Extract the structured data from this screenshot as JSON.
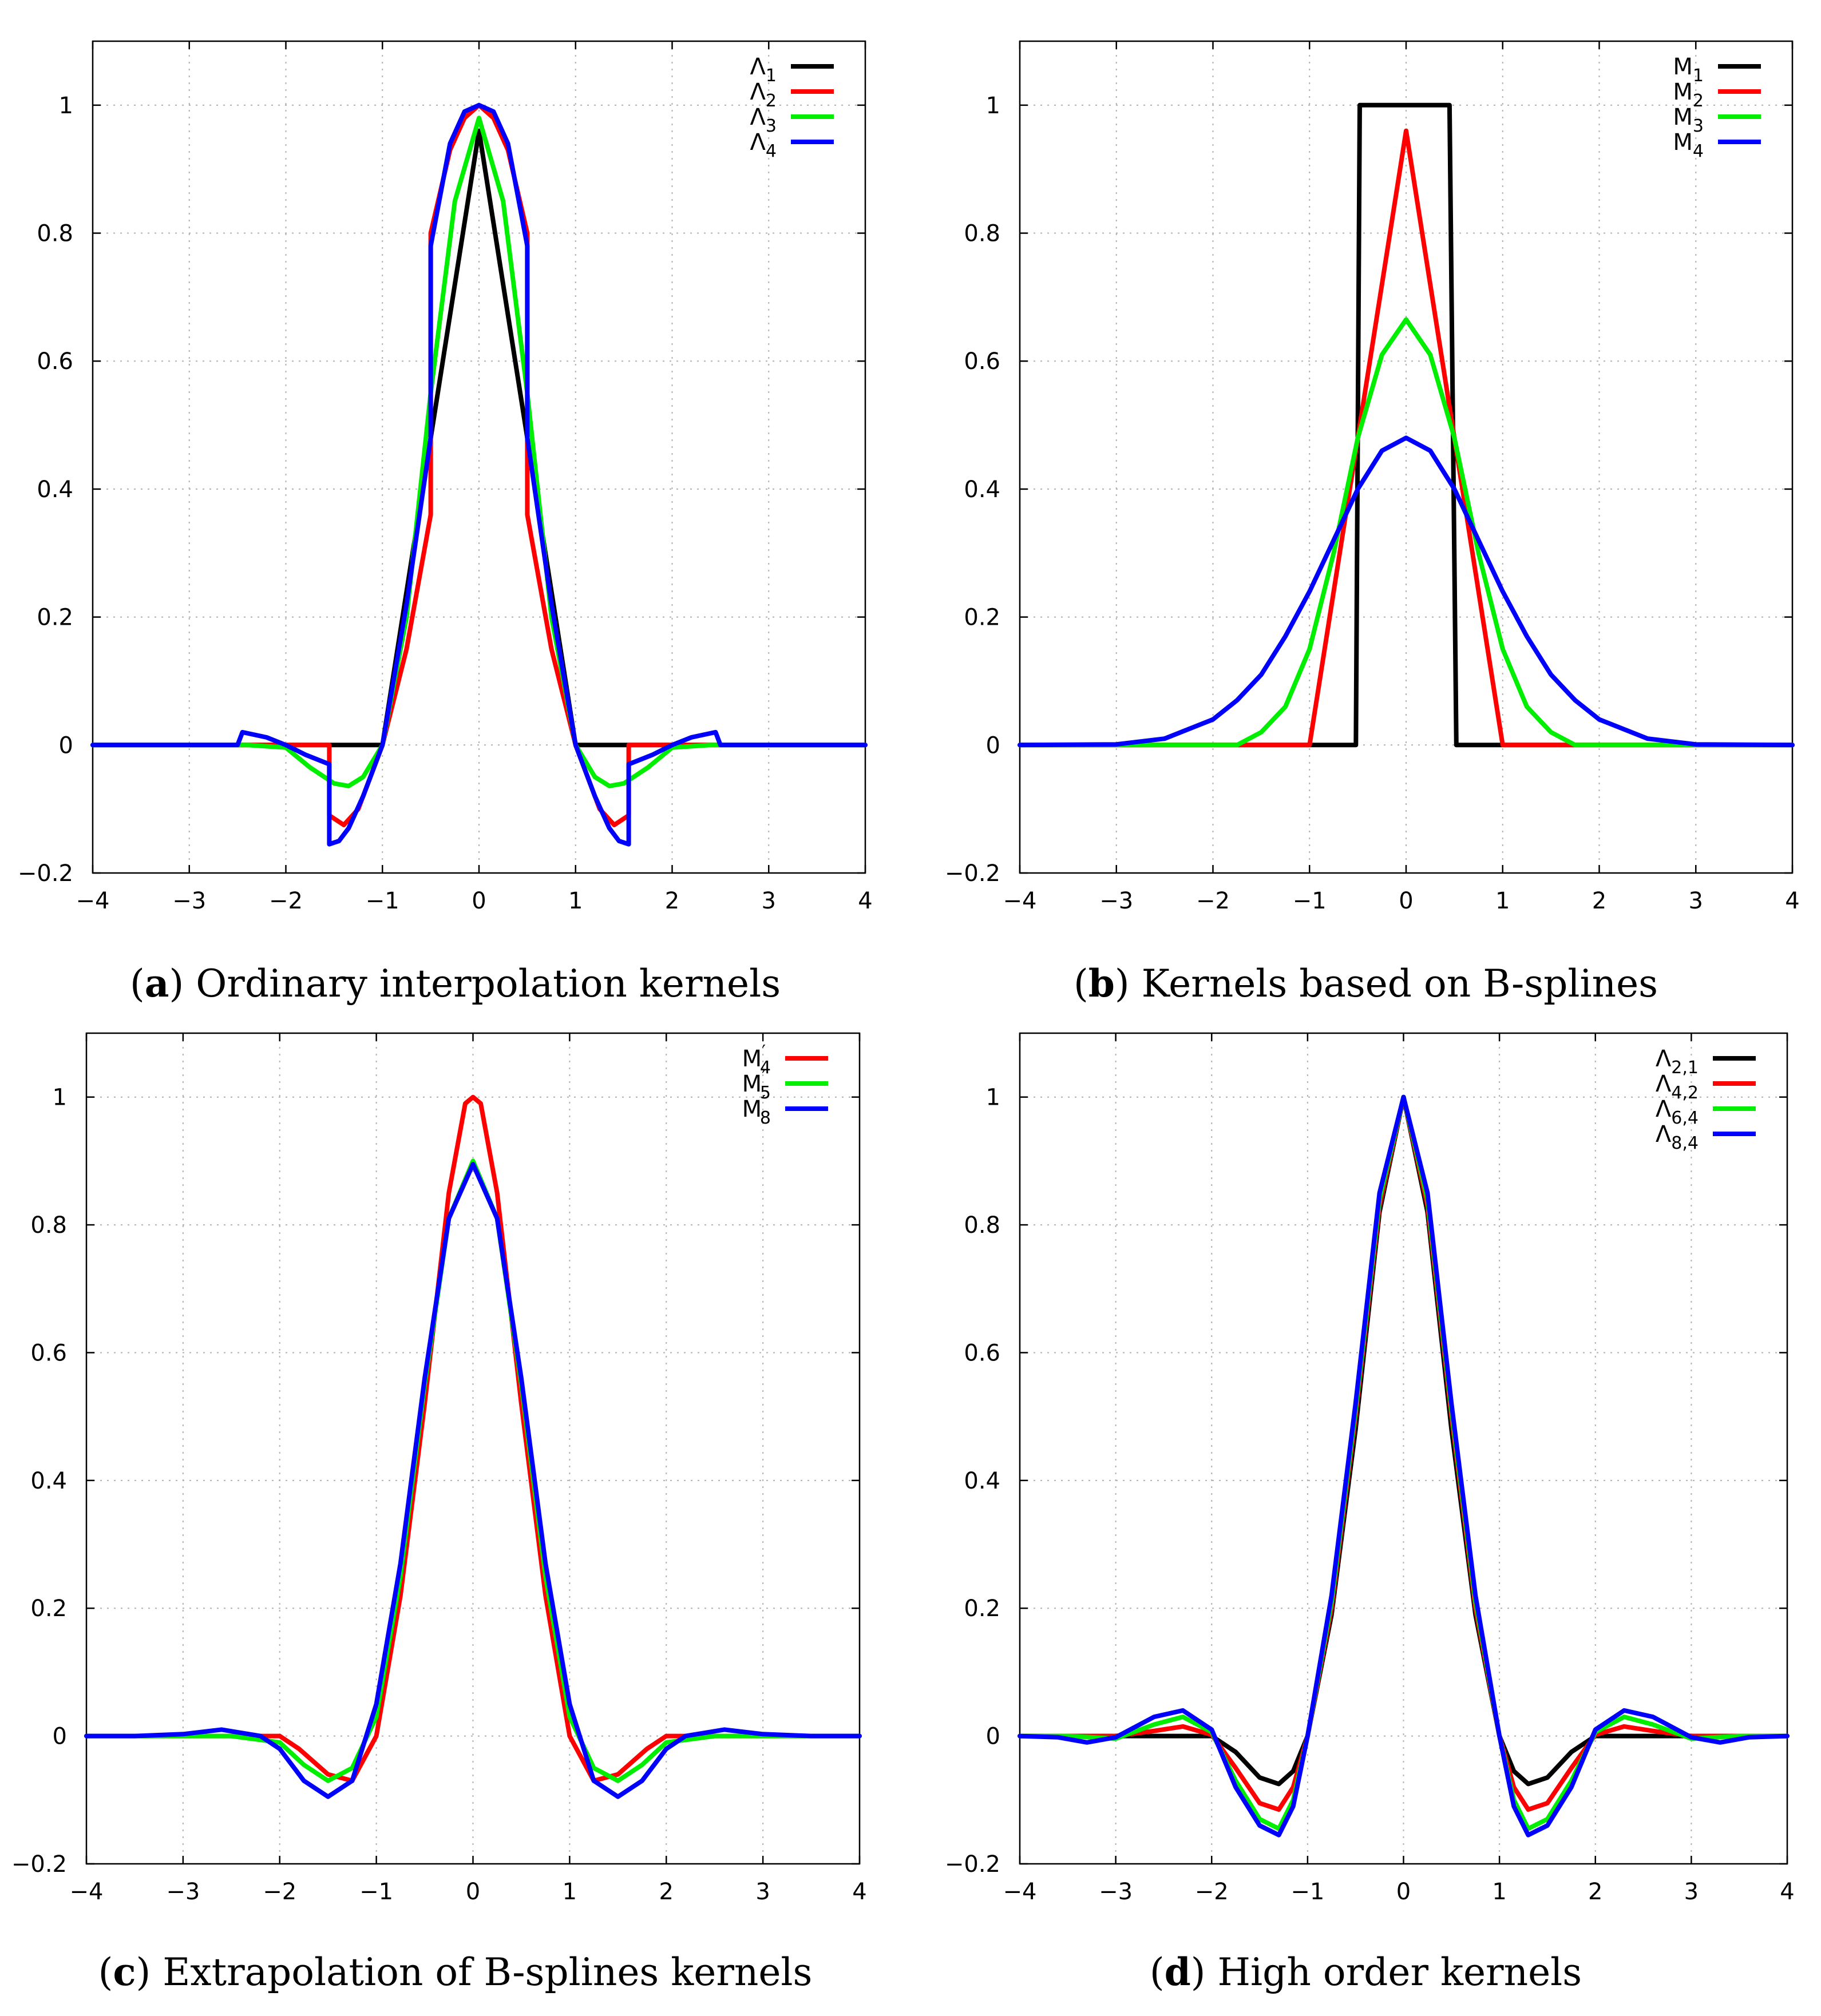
{
  "panels": [
    {
      "letter": "a",
      "caption": "Ordinary interpolation kernels"
    },
    {
      "letter": "b",
      "caption": "Kernels based on B-splines"
    },
    {
      "letter": "c",
      "caption": "Extrapolation of B-splines kernels"
    },
    {
      "letter": "d",
      "caption": "High order kernels"
    }
  ],
  "chart_data": [
    {
      "type": "line",
      "title": "(a) Ordinary interpolation kernels",
      "xlim": [
        -4,
        4
      ],
      "ylim": [
        -0.2,
        1.1
      ],
      "xticks": [
        -4,
        -3,
        -2,
        -1,
        0,
        1,
        2,
        3,
        4
      ],
      "yticks": [
        -0.2,
        0,
        0.2,
        0.4,
        0.6,
        0.8,
        1
      ],
      "grid": true,
      "legend_position": "top-right",
      "series": [
        {
          "name": "Λ1",
          "sym": "Λ",
          "sub": "1",
          "color": "#000000",
          "x": [
            -4,
            -1,
            0,
            1,
            4
          ],
          "y": [
            0,
            0,
            0.96,
            0,
            0
          ]
        },
        {
          "name": "Λ2",
          "sym": "Λ",
          "sub": "2",
          "color": "#ff0000",
          "x": [
            -4,
            -1.55,
            -1.55,
            -1.4,
            -1.25,
            -1,
            -0.75,
            -0.5,
            -0.5,
            -0.3,
            -0.15,
            0,
            0.15,
            0.3,
            0.5,
            0.5,
            0.75,
            1,
            1.25,
            1.4,
            1.55,
            1.55,
            4
          ],
          "y": [
            0,
            0,
            -0.11,
            -0.125,
            -0.1,
            0,
            0.15,
            0.36,
            0.8,
            0.93,
            0.98,
            1,
            0.98,
            0.93,
            0.8,
            0.36,
            0.15,
            0,
            -0.1,
            -0.125,
            -0.11,
            0,
            0
          ]
        },
        {
          "name": "Λ3",
          "sym": "Λ",
          "sub": "3",
          "color": "#00ee00",
          "x": [
            -4,
            -2.4,
            -2,
            -1.75,
            -1.5,
            -1.35,
            -1.2,
            -1,
            -0.75,
            -0.5,
            -0.25,
            0,
            0.25,
            0.5,
            0.75,
            1,
            1.2,
            1.35,
            1.5,
            1.75,
            2,
            2.4,
            4
          ],
          "y": [
            0,
            0,
            -0.004,
            -0.035,
            -0.06,
            -0.064,
            -0.05,
            0,
            0.2,
            0.55,
            0.85,
            0.98,
            0.85,
            0.55,
            0.2,
            0,
            -0.05,
            -0.064,
            -0.06,
            -0.035,
            -0.004,
            0,
            0
          ]
        },
        {
          "name": "Λ4",
          "sym": "Λ",
          "sub": "4",
          "color": "#0000ff",
          "x": [
            -4,
            -2.5,
            -2.45,
            -2.2,
            -2,
            -1.8,
            -1.55,
            -1.55,
            -1.45,
            -1.35,
            -1.2,
            -1,
            -0.75,
            -0.5,
            -0.5,
            -0.3,
            -0.15,
            0,
            0.15,
            0.3,
            0.5,
            0.5,
            0.75,
            1,
            1.2,
            1.35,
            1.45,
            1.55,
            1.55,
            1.8,
            2,
            2.2,
            2.45,
            2.5,
            4
          ],
          "y": [
            0,
            0,
            0.02,
            0.012,
            0,
            -0.015,
            -0.03,
            -0.155,
            -0.15,
            -0.13,
            -0.08,
            0,
            0.22,
            0.48,
            0.78,
            0.94,
            0.99,
            1,
            0.99,
            0.94,
            0.78,
            0.48,
            0.22,
            0,
            -0.08,
            -0.13,
            -0.15,
            -0.155,
            -0.03,
            -0.015,
            0,
            0.012,
            0.02,
            0,
            0
          ]
        }
      ]
    },
    {
      "type": "line",
      "title": "(b) Kernels based on B-splines",
      "xlim": [
        -4,
        4
      ],
      "ylim": [
        -0.2,
        1.1
      ],
      "xticks": [
        -4,
        -3,
        -2,
        -1,
        0,
        1,
        2,
        3,
        4
      ],
      "yticks": [
        -0.2,
        0,
        0.2,
        0.4,
        0.6,
        0.8,
        1
      ],
      "grid": true,
      "legend_position": "top-right",
      "series": [
        {
          "name": "M1",
          "sym": "M",
          "sub": "1",
          "color": "#000000",
          "x": [
            -4,
            -0.52,
            -0.48,
            0.45,
            0.52,
            4
          ],
          "y": [
            0,
            0,
            1,
            1,
            0,
            0
          ]
        },
        {
          "name": "M2",
          "sym": "M",
          "sub": "2",
          "color": "#ff0000",
          "x": [
            -4,
            -1,
            0,
            1,
            4
          ],
          "y": [
            0,
            0,
            0.96,
            0,
            0
          ]
        },
        {
          "name": "M3",
          "sym": "M",
          "sub": "3",
          "color": "#00ee00",
          "x": [
            -4,
            -1.75,
            -1.5,
            -1.25,
            -1,
            -0.75,
            -0.5,
            -0.25,
            0,
            0.25,
            0.5,
            0.75,
            1,
            1.25,
            1.5,
            1.75,
            4
          ],
          "y": [
            0,
            0,
            0.02,
            0.06,
            0.15,
            0.3,
            0.48,
            0.61,
            0.665,
            0.61,
            0.48,
            0.3,
            0.15,
            0.06,
            0.02,
            0,
            0
          ]
        },
        {
          "name": "M4",
          "sym": "M",
          "sub": "4",
          "color": "#0000ff",
          "x": [
            -4,
            -3,
            -2.5,
            -2,
            -1.75,
            -1.5,
            -1.25,
            -1,
            -0.75,
            -0.5,
            -0.25,
            0,
            0.25,
            0.5,
            0.75,
            1,
            1.25,
            1.5,
            1.75,
            2,
            2.5,
            3,
            4
          ],
          "y": [
            0,
            0.001,
            0.01,
            0.04,
            0.07,
            0.11,
            0.17,
            0.24,
            0.32,
            0.4,
            0.46,
            0.48,
            0.46,
            0.4,
            0.32,
            0.24,
            0.17,
            0.11,
            0.07,
            0.04,
            0.01,
            0.001,
            0
          ]
        }
      ]
    },
    {
      "type": "line",
      "title": "(c) Extrapolation of B-splines kernels",
      "xlim": [
        -4,
        4
      ],
      "ylim": [
        -0.2,
        1.1
      ],
      "xticks": [
        -4,
        -3,
        -2,
        -1,
        0,
        1,
        2,
        3,
        4
      ],
      "yticks": [
        -0.2,
        0,
        0.2,
        0.4,
        0.6,
        0.8,
        1
      ],
      "grid": true,
      "legend_position": "top-right",
      "series": [
        {
          "name": "M'4",
          "sym": "M",
          "sub": "4",
          "prime": true,
          "color": "#ff0000",
          "x": [
            -4,
            -2,
            -1.8,
            -1.5,
            -1.25,
            -1,
            -0.75,
            -0.5,
            -0.25,
            -0.08,
            0,
            0.08,
            0.25,
            0.5,
            0.75,
            1,
            1.25,
            1.5,
            1.8,
            2,
            4
          ],
          "y": [
            0,
            0,
            -0.02,
            -0.06,
            -0.07,
            0,
            0.22,
            0.52,
            0.85,
            0.99,
            1,
            0.99,
            0.85,
            0.52,
            0.22,
            0,
            -0.07,
            -0.06,
            -0.02,
            0,
            0
          ]
        },
        {
          "name": "M'5",
          "sym": "M",
          "sub": "5",
          "prime": true,
          "color": "#00ee00",
          "x": [
            -4,
            -2.5,
            -2,
            -1.75,
            -1.5,
            -1.25,
            -1,
            -0.75,
            -0.5,
            -0.25,
            0,
            0.25,
            0.5,
            0.75,
            1,
            1.25,
            1.5,
            1.75,
            2,
            2.5,
            4
          ],
          "y": [
            0,
            0,
            -0.01,
            -0.045,
            -0.07,
            -0.05,
            0.03,
            0.25,
            0.55,
            0.81,
            0.9,
            0.81,
            0.55,
            0.25,
            0.03,
            -0.05,
            -0.07,
            -0.045,
            -0.01,
            0,
            0
          ]
        },
        {
          "name": "M'8",
          "sym": "M",
          "sub": "8",
          "prime": true,
          "color": "#0000ff",
          "x": [
            -4,
            -3.5,
            -3,
            -2.6,
            -2.2,
            -2,
            -1.75,
            -1.5,
            -1.25,
            -1,
            -0.75,
            -0.5,
            -0.25,
            0,
            0.25,
            0.5,
            0.75,
            1,
            1.25,
            1.5,
            1.75,
            2,
            2.2,
            2.6,
            3,
            3.5,
            4
          ],
          "y": [
            0,
            0,
            0.003,
            0.01,
            0,
            -0.02,
            -0.07,
            -0.095,
            -0.07,
            0.05,
            0.27,
            0.56,
            0.81,
            0.895,
            0.81,
            0.56,
            0.27,
            0.05,
            -0.07,
            -0.095,
            -0.07,
            -0.02,
            0,
            0.01,
            0.003,
            0,
            0
          ]
        }
      ]
    },
    {
      "type": "line",
      "title": "(d) High order kernels",
      "xlim": [
        -4,
        4
      ],
      "ylim": [
        -0.2,
        1.1
      ],
      "xticks": [
        -4,
        -3,
        -2,
        -1,
        0,
        1,
        2,
        3,
        4
      ],
      "yticks": [
        -0.2,
        0,
        0.2,
        0.4,
        0.6,
        0.8,
        1
      ],
      "grid": true,
      "legend_position": "top-right",
      "series": [
        {
          "name": "Λ2,1",
          "sym": "Λ",
          "sub": "2,1",
          "color": "#000000",
          "x": [
            -4,
            -2,
            -1.75,
            -1.5,
            -1.3,
            -1.15,
            -1,
            -0.75,
            -0.5,
            -0.25,
            0,
            0.25,
            0.5,
            0.75,
            1,
            1.15,
            1.3,
            1.5,
            1.75,
            2,
            4
          ],
          "y": [
            0,
            0,
            -0.025,
            -0.065,
            -0.075,
            -0.055,
            0,
            0.19,
            0.48,
            0.82,
            1,
            0.82,
            0.48,
            0.19,
            0,
            -0.055,
            -0.075,
            -0.065,
            -0.025,
            0,
            0
          ]
        },
        {
          "name": "Λ4,2",
          "sym": "Λ",
          "sub": "4,2",
          "color": "#ff0000",
          "x": [
            -4,
            -3,
            -2.6,
            -2.3,
            -2,
            -1.75,
            -1.5,
            -1.3,
            -1.15,
            -1,
            -0.75,
            -0.5,
            -0.25,
            0,
            0.25,
            0.5,
            0.75,
            1,
            1.15,
            1.3,
            1.5,
            1.75,
            2,
            2.3,
            2.6,
            3,
            4
          ],
          "y": [
            0,
            0,
            0.008,
            0.015,
            0.002,
            -0.05,
            -0.105,
            -0.115,
            -0.08,
            0,
            0.2,
            0.5,
            0.83,
            1,
            0.83,
            0.5,
            0.2,
            0,
            -0.08,
            -0.115,
            -0.105,
            -0.05,
            0.002,
            0.015,
            0.008,
            0,
            0
          ]
        },
        {
          "name": "Λ6,4",
          "sym": "Λ",
          "sub": "6,4",
          "color": "#00ee00",
          "x": [
            -4,
            -3.5,
            -3,
            -2.6,
            -2.3,
            -2,
            -1.75,
            -1.5,
            -1.3,
            -1.15,
            -1,
            -0.75,
            -0.5,
            -0.25,
            0,
            0.25,
            0.5,
            0.75,
            1,
            1.15,
            1.3,
            1.5,
            1.75,
            2,
            2.3,
            2.6,
            3,
            3.5,
            4
          ],
          "y": [
            0,
            0,
            -0.004,
            0.018,
            0.03,
            0.006,
            -0.07,
            -0.13,
            -0.145,
            -0.1,
            0,
            0.21,
            0.51,
            0.84,
            1,
            0.84,
            0.51,
            0.21,
            0,
            -0.1,
            -0.145,
            -0.13,
            -0.07,
            0.006,
            0.03,
            0.018,
            -0.004,
            0,
            0
          ]
        },
        {
          "name": "Λ8,4",
          "sym": "Λ",
          "sub": "8,4",
          "color": "#0000ff",
          "x": [
            -4,
            -3.6,
            -3.3,
            -3,
            -2.6,
            -2.3,
            -2,
            -1.75,
            -1.5,
            -1.3,
            -1.15,
            -1,
            -0.75,
            -0.5,
            -0.25,
            0,
            0.25,
            0.5,
            0.75,
            1,
            1.15,
            1.3,
            1.5,
            1.75,
            2,
            2.3,
            2.6,
            3,
            3.3,
            3.6,
            4
          ],
          "y": [
            0,
            -0.002,
            -0.01,
            -0.002,
            0.03,
            0.04,
            0.01,
            -0.08,
            -0.14,
            -0.155,
            -0.11,
            0,
            0.22,
            0.52,
            0.85,
            1,
            0.85,
            0.52,
            0.22,
            0,
            -0.11,
            -0.155,
            -0.14,
            -0.08,
            0.01,
            0.04,
            0.03,
            -0.002,
            -0.01,
            -0.002,
            0
          ]
        }
      ]
    }
  ]
}
